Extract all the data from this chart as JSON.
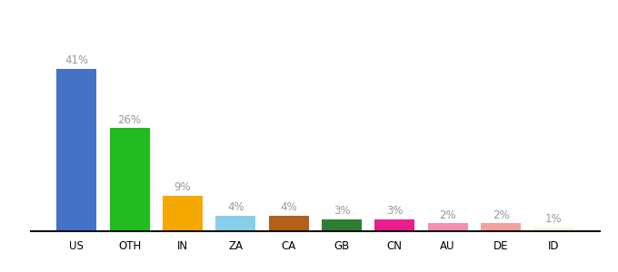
{
  "categories": [
    "US",
    "OTH",
    "IN",
    "ZA",
    "CA",
    "GB",
    "CN",
    "AU",
    "DE",
    "ID"
  ],
  "values": [
    41,
    26,
    9,
    4,
    4,
    3,
    3,
    2,
    2,
    1
  ],
  "bar_colors": [
    "#4472c4",
    "#22bb22",
    "#f5a800",
    "#87ceeb",
    "#b5601a",
    "#2e7d32",
    "#e91e8c",
    "#f48fb1",
    "#f4a0a0",
    "#f5f5dc"
  ],
  "label_color": "#999999",
  "label_fontsize": 8.5,
  "tick_fontsize": 8.5,
  "ylim": [
    0,
    48
  ],
  "background_color": "#ffffff"
}
